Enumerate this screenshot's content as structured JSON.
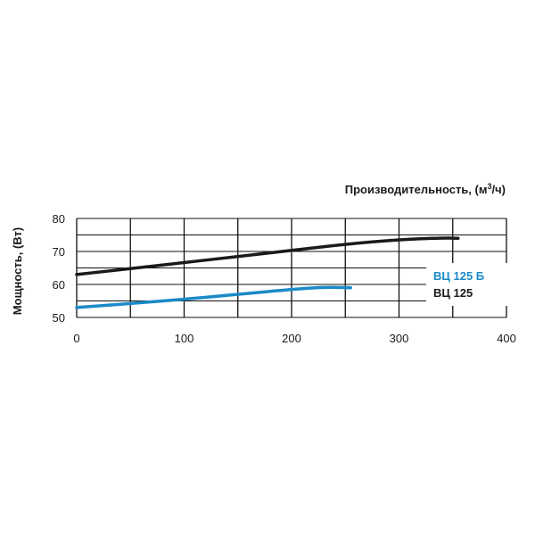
{
  "chart_data": {
    "type": "line",
    "xlabel": "Производительность, (м",
    "xlabel_sup": "3",
    "xlabel_end": "/ч)",
    "ylabel": "Мощность, (Вт)",
    "xlim": [
      0,
      400
    ],
    "ylim": [
      50,
      80
    ],
    "x_ticks": [
      "0",
      "100",
      "200",
      "300",
      "400"
    ],
    "y_ticks": [
      "50",
      "60",
      "70",
      "80"
    ],
    "grid": true,
    "legend_position": "right",
    "series": [
      {
        "name": "ВЦ 125 Б",
        "color": "#1a8ac8",
        "x": [
          0,
          50,
          100,
          150,
          200,
          230,
          255
        ],
        "y": [
          53,
          54.2,
          55.5,
          57,
          58.5,
          59.2,
          59
        ]
      },
      {
        "name": "ВЦ 125",
        "color": "#1a1a1a",
        "x": [
          0,
          50,
          100,
          150,
          200,
          250,
          300,
          340,
          355
        ],
        "y": [
          63,
          64.8,
          66.6,
          68.5,
          70.3,
          72.2,
          73.6,
          74.1,
          74
        ]
      }
    ]
  }
}
